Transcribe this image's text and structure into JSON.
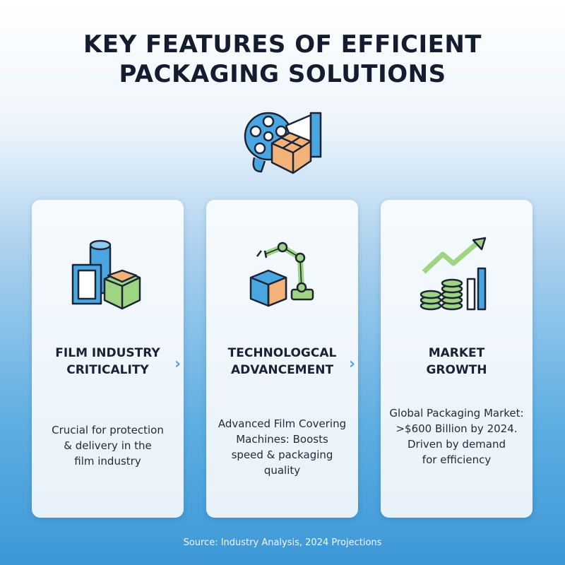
{
  "title_lines": [
    "KEY FEATURES OF EFFICIENT",
    "PACKAGING SOLUTIONS"
  ],
  "hero_icon": "film-reel-box-icon",
  "cards": [
    {
      "icon": "film-roll-box-icon",
      "title_lines": [
        "FILM INDUSTRY",
        "CRITICALITY"
      ],
      "body_lines": [
        "Crucial for protection",
        "& delivery in the",
        "film industry"
      ]
    },
    {
      "icon": "robotic-arm-box-icon",
      "title_lines": [
        "TECHNOLOGCAL",
        "ADVANCEMENT"
      ],
      "body_lines": [
        "Advanced Film Covering",
        "Machines: Boosts",
        "speed & packaging",
        "quality"
      ]
    },
    {
      "icon": "coins-growth-chart-icon",
      "title_lines": [
        "MARKET",
        "GROWTH"
      ],
      "body_lines": [
        "Global Packaging Market:",
        ">$600 Billion by 2024.",
        "Driven by demand",
        "for efficiency"
      ]
    }
  ],
  "chevron": "›",
  "source": "Source: Industry Analysis, 2024 Projections",
  "colors": {
    "title": "#141c30",
    "accent_blue": "#4aa6e0",
    "box_orange": "#f2b27a",
    "box_green": "#9fd483"
  }
}
